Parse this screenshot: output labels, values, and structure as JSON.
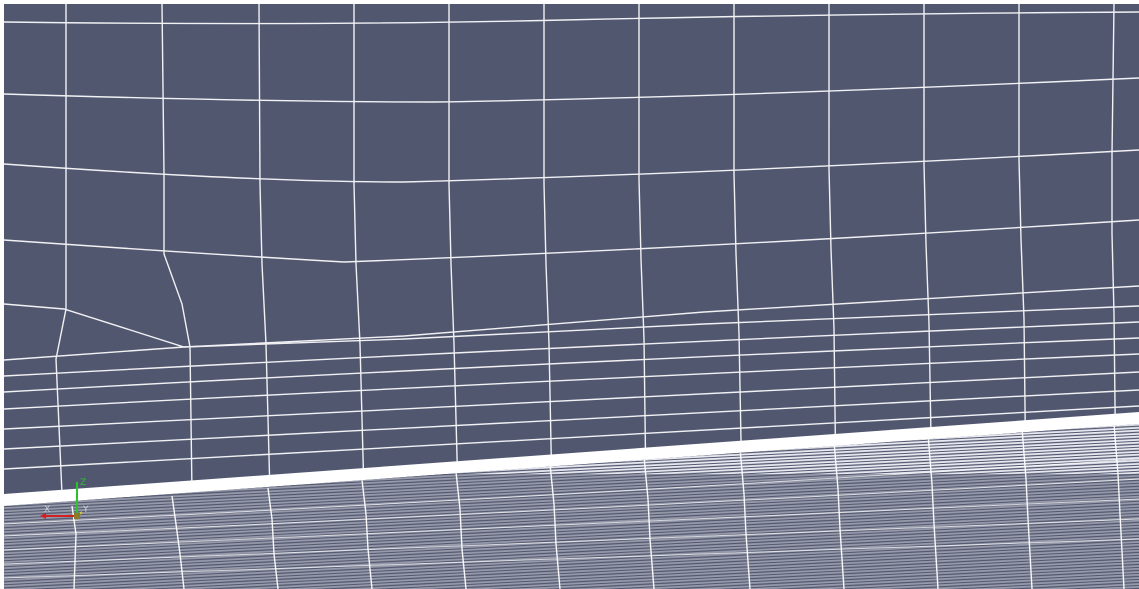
{
  "viewer": {
    "background_color": "#525770",
    "mesh_line_color": "#ffffff",
    "band_color": "#ffffff",
    "hatch_background": "#e9eaf1",
    "hatch_line_color": "#525770"
  },
  "orientation_axes": {
    "x_label": "X",
    "y_label": "Y",
    "z_label": "Z",
    "x_color": "#d22020",
    "y_color": "#d8c23a",
    "z_color": "#28c428"
  }
}
